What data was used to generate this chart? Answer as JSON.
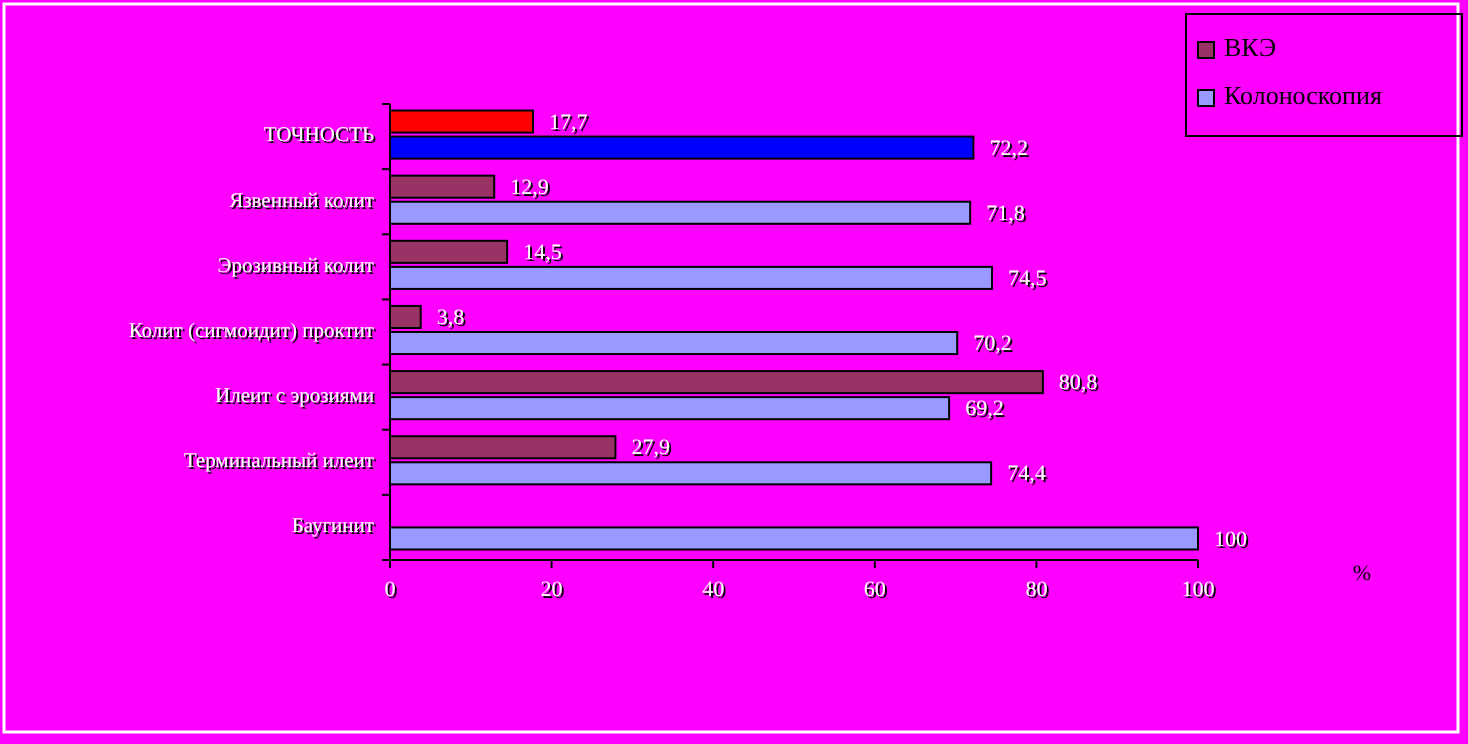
{
  "chart_data": {
    "type": "bar",
    "orientation": "horizontal",
    "annotations": [
      "%"
    ],
    "categories": [
      "ТОЧНОСТЬ",
      "Язвенный колит",
      "Эрозивный колит",
      "Колит (сигмоидит) проктит",
      "Илеит с эрозиями",
      "Терминальный илеит",
      "Баугинит"
    ],
    "series": [
      {
        "name": "ВКЭ",
        "color": "#993366",
        "colors": [
          "#ff0000",
          "#993366",
          "#993366",
          "#993366",
          "#993366",
          "#993366",
          "#993366"
        ],
        "values": [
          17.7,
          12.9,
          14.5,
          3.8,
          80.8,
          27.9,
          0
        ],
        "value_labels": [
          "17,7",
          "12,9",
          "14,5",
          "3,8",
          "80,8",
          "27,9",
          null
        ]
      },
      {
        "name": "Колоноскопия",
        "color": "#9999ff",
        "colors": [
          "#0000ff",
          "#9999ff",
          "#9999ff",
          "#9999ff",
          "#9999ff",
          "#9999ff",
          "#9999ff"
        ],
        "values": [
          72.2,
          71.8,
          74.5,
          70.2,
          69.2,
          74.4,
          100
        ],
        "value_labels": [
          "72,2",
          "71,8",
          "74,5",
          "70,2",
          "69,2",
          "74,4",
          "100"
        ]
      }
    ],
    "xlim": [
      0,
      100
    ],
    "xticks": [
      0,
      20,
      40,
      60,
      80,
      100
    ],
    "grid": false,
    "legend": "top right"
  }
}
